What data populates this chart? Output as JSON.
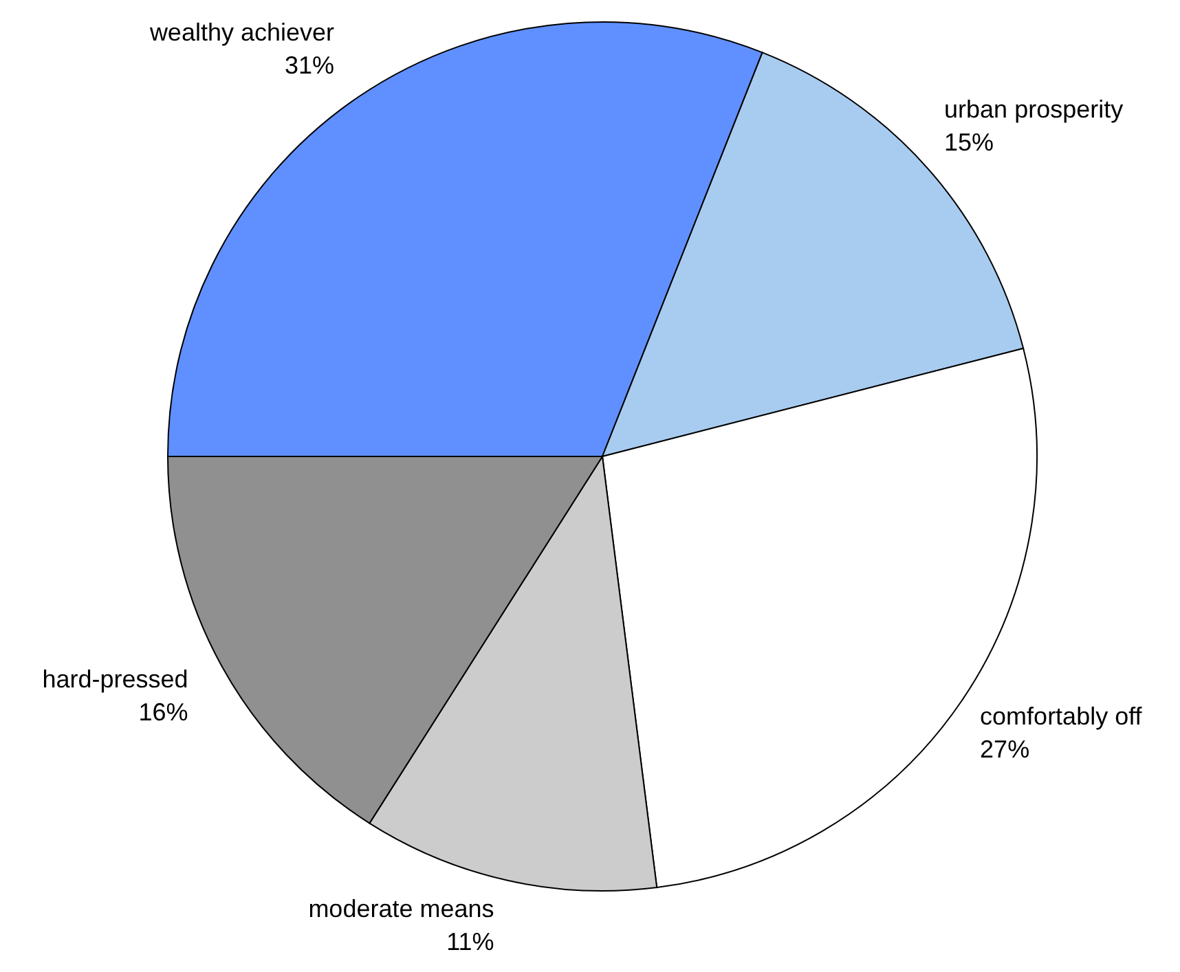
{
  "chart_data": {
    "type": "pie",
    "categories": [
      "wealthy achiever",
      "urban prosperity",
      "comfortably off",
      "moderate means",
      "hard-pressed"
    ],
    "values": [
      31,
      15,
      27,
      11,
      16
    ],
    "value_labels": [
      "31%",
      "15%",
      "27%",
      "11%",
      "16%"
    ],
    "colors": [
      "#6090ff",
      "#a8ccf0",
      "#ffffff",
      "#cccccc",
      "#909090"
    ]
  }
}
